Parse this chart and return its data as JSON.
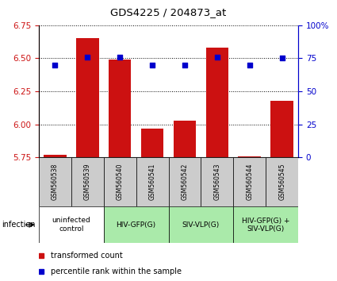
{
  "title": "GDS4225 / 204873_at",
  "samples": [
    "GSM560538",
    "GSM560539",
    "GSM560540",
    "GSM560541",
    "GSM560542",
    "GSM560543",
    "GSM560544",
    "GSM560545"
  ],
  "bar_values": [
    5.77,
    6.65,
    6.49,
    5.97,
    6.03,
    6.58,
    5.76,
    6.18
  ],
  "dot_values": [
    70,
    76,
    76,
    70,
    70,
    76,
    70,
    75
  ],
  "ylim_left": [
    5.75,
    6.75
  ],
  "ylim_right": [
    0,
    100
  ],
  "yticks_left": [
    5.75,
    6.0,
    6.25,
    6.5,
    6.75
  ],
  "yticks_right": [
    0,
    25,
    50,
    75,
    100
  ],
  "bar_color": "#cc1111",
  "dot_color": "#0000cc",
  "bg_label_row": "#cccccc",
  "infection_groups": [
    {
      "label": "uninfected\ncontrol",
      "start": 0,
      "end": 2,
      "color": "#ffffff"
    },
    {
      "label": "HIV-GFP(G)",
      "start": 2,
      "end": 4,
      "color": "#aaeaaa"
    },
    {
      "label": "SIV-VLP(G)",
      "start": 4,
      "end": 6,
      "color": "#aaeaaa"
    },
    {
      "label": "HIV-GFP(G) +\nSIV-VLP(G)",
      "start": 6,
      "end": 8,
      "color": "#aaeaaa"
    }
  ],
  "legend_bar_label": "transformed count",
  "legend_dot_label": "percentile rank within the sample",
  "infection_label": "infection"
}
